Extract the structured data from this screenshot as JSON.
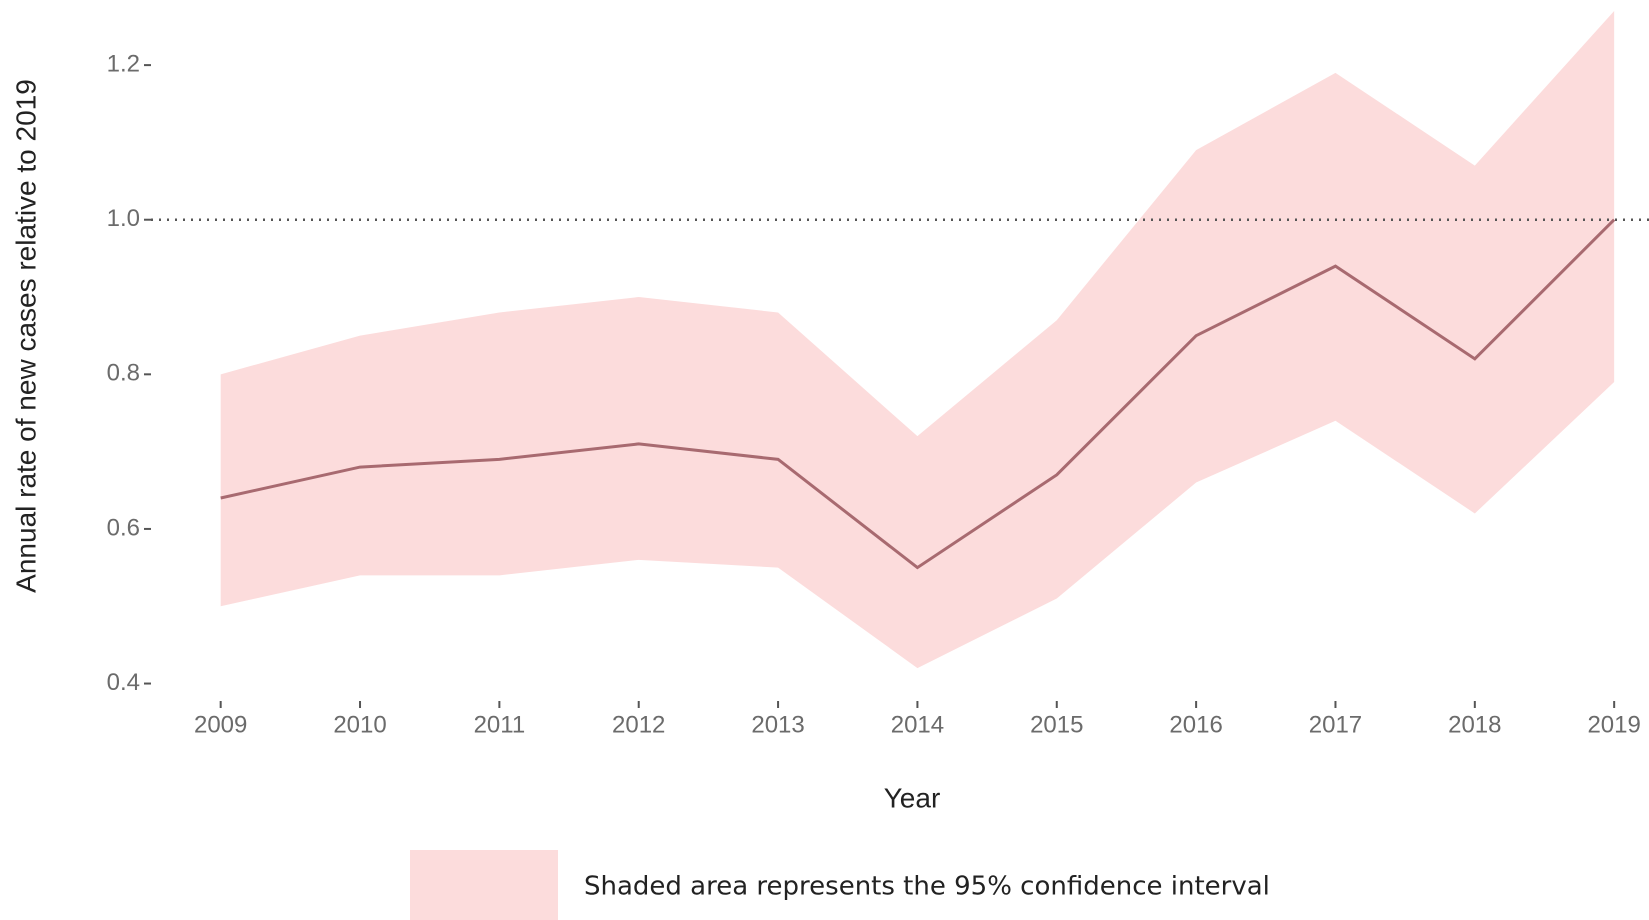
{
  "chart_data": {
    "type": "line",
    "x_label": "Year",
    "y_label": "Annual rate of new cases relative to 2019",
    "x": [
      2009,
      2010,
      2011,
      2012,
      2013,
      2014,
      2015,
      2016,
      2017,
      2018,
      2019
    ],
    "xlim": [
      2008.5,
      2019.25
    ],
    "xticks": [
      2009,
      2010,
      2011,
      2012,
      2013,
      2014,
      2015,
      2016,
      2017,
      2018,
      2019
    ],
    "ylim": [
      0.38,
      1.27
    ],
    "yticks": [
      0.4,
      0.6,
      0.8,
      {
        "value": 1,
        "label": "1.0"
      },
      1.2
    ],
    "hline": 1,
    "hline_style": "dotted",
    "band": {
      "name": "Shaded area represents the 95% confidence interval",
      "color": "#fcdcdc",
      "upper": [
        0.8,
        0.85,
        0.88,
        0.9,
        0.88,
        0.72,
        0.87,
        1.09,
        1.19,
        1.07,
        1.27
      ],
      "lower": [
        0.5,
        0.54,
        0.54,
        0.56,
        0.55,
        0.42,
        0.51,
        0.66,
        0.74,
        0.62,
        0.79
      ]
    },
    "series": [
      {
        "color": "#a86a70",
        "values": [
          0.64,
          0.68,
          0.69,
          0.71,
          0.69,
          0.55,
          0.67,
          0.85,
          0.94,
          0.82,
          1.0
        ]
      }
    ]
  }
}
